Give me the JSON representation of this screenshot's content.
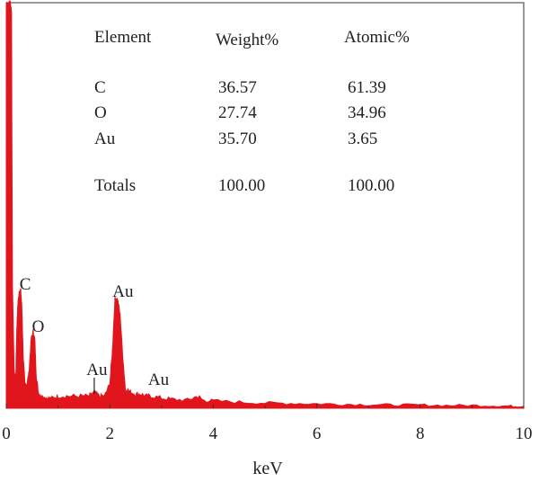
{
  "chart_data": {
    "type": "area",
    "xlabel": "keV",
    "ylabel": "",
    "xlim": [
      0,
      10
    ],
    "ylim": [
      0,
      100
    ],
    "x_ticks": [
      "0",
      "2",
      "4",
      "6",
      "8",
      "10"
    ],
    "series_color": "#e0161c",
    "spectrum": {
      "x": [
        0.0,
        0.05,
        0.08,
        0.1,
        0.12,
        0.15,
        0.18,
        0.2,
        0.22,
        0.25,
        0.28,
        0.3,
        0.33,
        0.36,
        0.4,
        0.44,
        0.48,
        0.52,
        0.55,
        0.58,
        0.62,
        0.66,
        0.7,
        0.8,
        0.9,
        1.0,
        1.2,
        1.4,
        1.6,
        1.7,
        1.8,
        1.9,
        2.0,
        2.05,
        2.1,
        2.15,
        2.2,
        2.25,
        2.3,
        2.4,
        2.5,
        2.6,
        2.7,
        2.8,
        3.0,
        3.2,
        3.5,
        3.7,
        3.8,
        4.0,
        4.5,
        5.0,
        5.5,
        6.0,
        6.5,
        7.0,
        7.5,
        8.0,
        8.5,
        9.0,
        9.5,
        9.8,
        10.0
      ],
      "y": [
        100,
        100,
        100,
        98,
        30,
        10,
        6,
        18,
        25,
        29,
        29,
        25,
        12,
        6,
        6,
        9,
        17,
        19,
        17,
        8,
        4,
        3,
        3,
        2.5,
        2.5,
        3,
        3,
        3,
        3,
        4,
        3,
        3,
        6,
        14,
        27,
        27,
        23,
        13,
        5,
        4,
        3.5,
        3.5,
        3,
        3,
        2.5,
        2.2,
        2,
        3,
        2,
        1.8,
        1.5,
        1.3,
        1.2,
        1.1,
        1.0,
        0.9,
        0.8,
        0.8,
        0.7,
        0.7,
        0.6,
        0.5,
        0.5
      ]
    },
    "peak_labels": [
      {
        "text": "C",
        "energy": 0.28
      },
      {
        "text": "O",
        "energy": 0.53
      },
      {
        "text": "Au",
        "energy": 1.7
      },
      {
        "text": "Au",
        "energy": 2.15
      },
      {
        "text": "Au",
        "energy": 2.7
      }
    ]
  },
  "table": {
    "headers": [
      "Element",
      "Weight%",
      "Atomic%"
    ],
    "rows": [
      [
        "C",
        "36.57",
        "61.39"
      ],
      [
        "O",
        "27.74",
        "34.96"
      ],
      [
        "Au",
        "35.70",
        "3.65"
      ]
    ],
    "totals": [
      "Totals",
      "100.00",
      "100.00"
    ]
  }
}
